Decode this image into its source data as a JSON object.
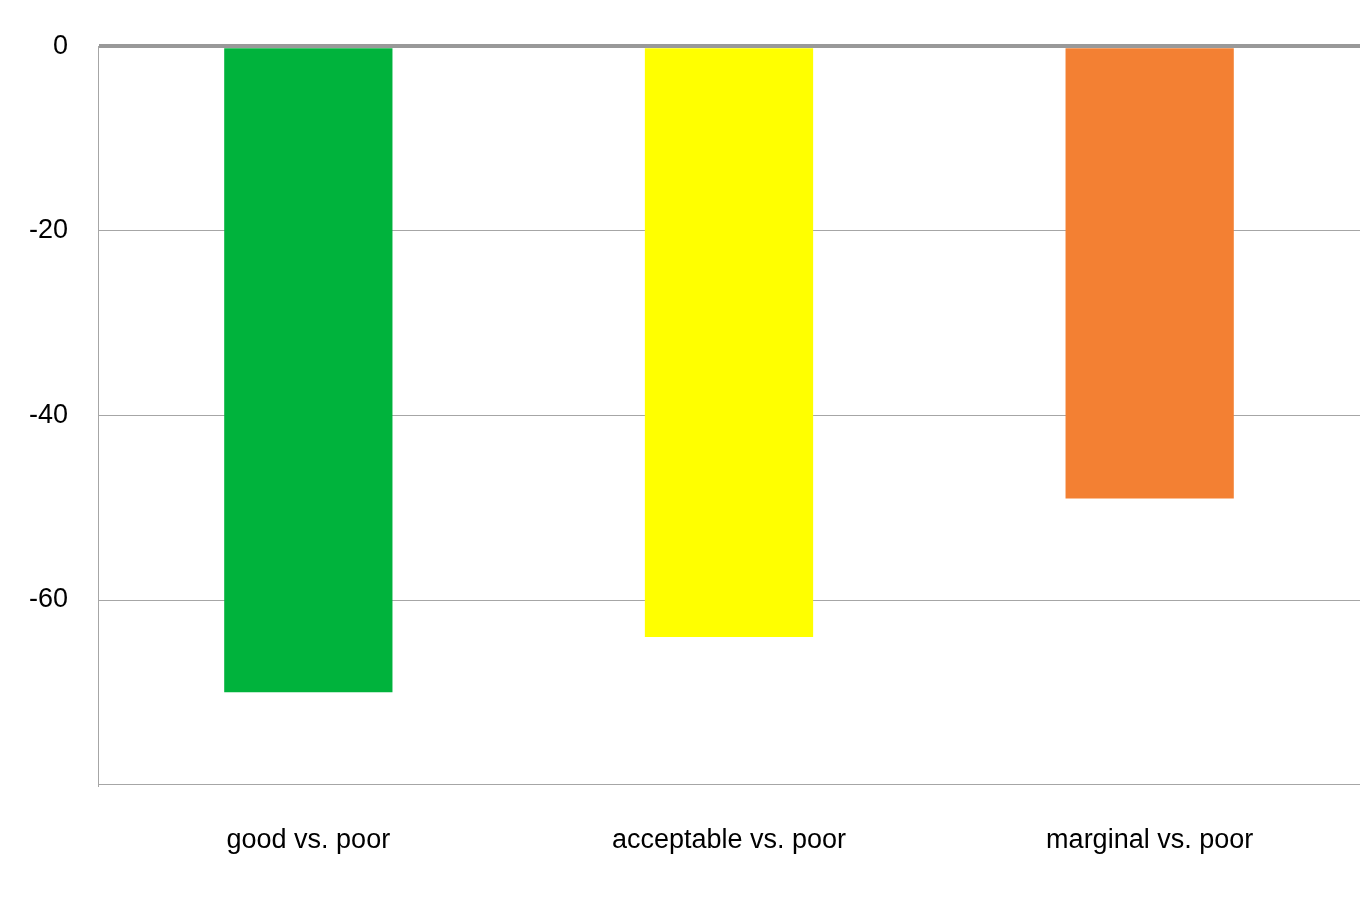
{
  "chart_data": {
    "type": "bar",
    "categories": [
      "good vs. poor",
      "acceptable vs. poor",
      "marginal vs. poor"
    ],
    "values": [
      -70,
      -64,
      -49
    ],
    "colors": [
      "#00b33c",
      "#ffff00",
      "#f38033"
    ],
    "ylim": [
      -80,
      0
    ],
    "yticks": [
      0,
      -20,
      -40,
      -60
    ],
    "grid": "y",
    "legend": false
  }
}
